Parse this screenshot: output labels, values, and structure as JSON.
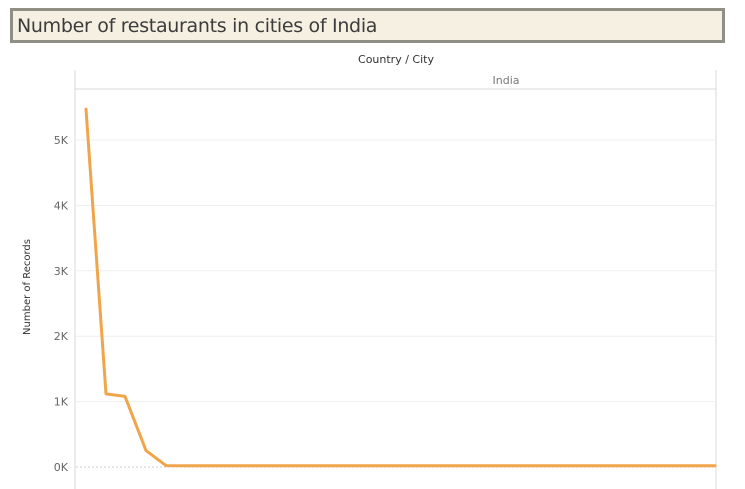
{
  "title": "Number of restaurants in cities of India",
  "chart_data": {
    "type": "line",
    "column_header": "Country / City",
    "facet": "India",
    "ylabel": "Number of Records",
    "xlabel": "",
    "ylim": [
      0,
      5600
    ],
    "yticks": [
      0,
      1000,
      2000,
      3000,
      4000,
      5000
    ],
    "ytick_labels": [
      "0K",
      "1K",
      "2K",
      "3K",
      "4K",
      "5K"
    ],
    "series": [
      {
        "color": "#f0a54a",
        "values": [
          5473,
          1118,
          1080,
          251,
          21,
          20,
          20,
          20,
          20,
          20,
          20,
          20,
          20,
          20,
          20,
          20,
          20,
          20,
          20,
          20,
          20,
          20,
          20,
          20,
          20,
          20,
          20,
          20,
          20,
          20,
          20,
          20
        ]
      }
    ]
  }
}
